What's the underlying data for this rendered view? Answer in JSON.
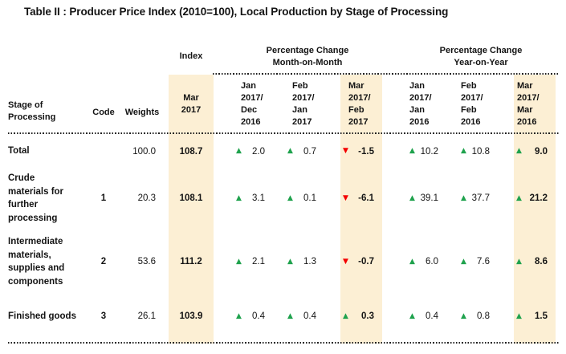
{
  "title": "Table II : Producer Price Index (2010=100), Local Production by Stage of Processing",
  "colors": {
    "highlight": "#FCEFD4",
    "up_green": "#1FA24D",
    "down_red": "#F40000"
  },
  "header": {
    "stage": "Stage of Processing",
    "code": "Code",
    "weights": "Weights",
    "index_group": "Index",
    "index_period": "Mar 2017",
    "mom_group": "Percentage Change Month-on-Month",
    "mom_periods": [
      "Jan 2017/ Dec 2016",
      "Feb 2017/ Jan 2017",
      "Mar 2017/ Feb 2017"
    ],
    "yoy_group": "Percentage Change Year-on-Year",
    "yoy_periods": [
      "Jan 2017/ Jan 2016",
      "Feb 2017/ Feb 2016",
      "Mar 2017/ Mar 2016"
    ]
  },
  "rows": [
    {
      "stage_lines": [
        "Total"
      ],
      "code": "",
      "weights": "100.0",
      "index": "108.7",
      "mom": [
        {
          "icon": "▲",
          "value": "2.0"
        },
        {
          "icon": "▲",
          "value": "0.7"
        },
        {
          "icon": "▼",
          "value": "-1.5"
        }
      ],
      "yoy": [
        {
          "icon": "▲",
          "value": "10.2"
        },
        {
          "icon": "▲",
          "value": "10.8"
        },
        {
          "icon": "▲",
          "value": "9.0"
        }
      ]
    },
    {
      "stage_lines": [
        "Crude",
        "materials for",
        "further",
        "processing"
      ],
      "code": "1",
      "weights": "20.3",
      "index": "108.1",
      "mom": [
        {
          "icon": "▲",
          "value": "3.1"
        },
        {
          "icon": "▲",
          "value": "0.1"
        },
        {
          "icon": "▼",
          "value": "-6.1"
        }
      ],
      "yoy": [
        {
          "icon": "▲",
          "value": "39.1"
        },
        {
          "icon": "▲",
          "value": "37.7"
        },
        {
          "icon": "▲",
          "value": "21.2"
        }
      ]
    },
    {
      "stage_lines": [
        "Intermediate",
        "materials,",
        "supplies and",
        "components"
      ],
      "code": "2",
      "weights": "53.6",
      "index": "111.2",
      "mom": [
        {
          "icon": "▲",
          "value": "2.1"
        },
        {
          "icon": "▲",
          "value": "1.3"
        },
        {
          "icon": "▼",
          "value": "-0.7"
        }
      ],
      "yoy": [
        {
          "icon": "▲",
          "value": "6.0"
        },
        {
          "icon": "▲",
          "value": "7.6"
        },
        {
          "icon": "▲",
          "value": "8.6"
        }
      ]
    },
    {
      "stage_lines": [
        "Finished goods"
      ],
      "code": "3",
      "weights": "26.1",
      "index": "103.9",
      "mom": [
        {
          "icon": "▲",
          "value": "0.4"
        },
        {
          "icon": "▲",
          "value": "0.4"
        },
        {
          "icon": "▲",
          "value": "0.3"
        }
      ],
      "yoy": [
        {
          "icon": "▲",
          "value": "0.4"
        },
        {
          "icon": "▲",
          "value": "0.8"
        },
        {
          "icon": "▲",
          "value": "1.5"
        }
      ]
    }
  ]
}
